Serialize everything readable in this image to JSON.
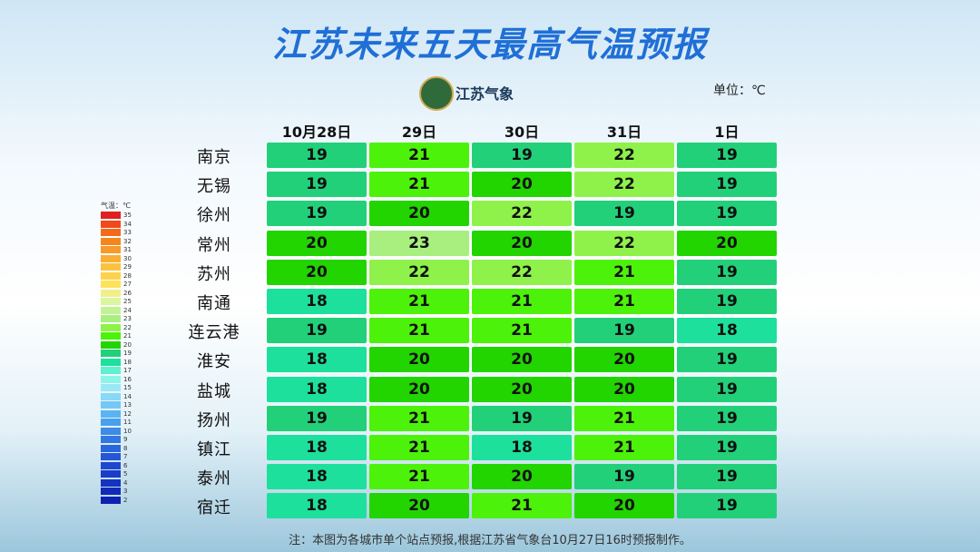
{
  "header": {
    "title": "江苏未来五天最高气温预报",
    "logo_text": "江苏气象",
    "unit": "单位：℃"
  },
  "table": {
    "columns": [
      "10月28日",
      "29日",
      "30日",
      "31日",
      "1日"
    ],
    "rows": [
      {
        "city": "南京",
        "values": [
          19,
          21,
          19,
          22,
          19
        ]
      },
      {
        "city": "无锡",
        "values": [
          19,
          21,
          20,
          22,
          19
        ]
      },
      {
        "city": "徐州",
        "values": [
          19,
          20,
          22,
          19,
          19
        ]
      },
      {
        "city": "常州",
        "values": [
          20,
          23,
          20,
          22,
          20
        ]
      },
      {
        "city": "苏州",
        "values": [
          20,
          22,
          22,
          21,
          19
        ]
      },
      {
        "city": "南通",
        "values": [
          18,
          21,
          21,
          21,
          19
        ]
      },
      {
        "city": "连云港",
        "values": [
          19,
          21,
          21,
          19,
          18
        ]
      },
      {
        "city": "淮安",
        "values": [
          18,
          20,
          20,
          20,
          19
        ]
      },
      {
        "city": "盐城",
        "values": [
          18,
          20,
          20,
          20,
          19
        ]
      },
      {
        "city": "扬州",
        "values": [
          19,
          21,
          19,
          21,
          19
        ]
      },
      {
        "city": "镇江",
        "values": [
          18,
          21,
          18,
          21,
          19
        ]
      },
      {
        "city": "泰州",
        "values": [
          18,
          21,
          20,
          19,
          19
        ]
      },
      {
        "city": "宿迁",
        "values": [
          18,
          20,
          21,
          20,
          19
        ]
      }
    ]
  },
  "legend": {
    "title": "气温：℃",
    "levels": [
      35,
      34,
      33,
      32,
      31,
      30,
      29,
      28,
      27,
      26,
      25,
      24,
      23,
      22,
      21,
      20,
      19,
      18,
      17,
      16,
      15,
      14,
      13,
      12,
      11,
      10,
      9,
      8,
      7,
      6,
      5,
      4,
      3,
      2
    ],
    "colors": [
      "#e02020",
      "#f04a1a",
      "#f26a1a",
      "#f5861e",
      "#f79a2a",
      "#f9ae34",
      "#fbc23e",
      "#fdd24c",
      "#fde25c",
      "#f0f08a",
      "#dcf5a0",
      "#c2f298",
      "#a8ef80",
      "#8ff24a",
      "#4cf20a",
      "#22d400",
      "#22d07a",
      "#1de09c",
      "#5ef0d0",
      "#8af5e8",
      "#9ae8f5",
      "#88d8f8",
      "#74c8f6",
      "#5ab4f2",
      "#4aa0ee",
      "#3c8ce8",
      "#3278e2",
      "#2a66dc",
      "#2456d6",
      "#1e48cf",
      "#1a3cc8",
      "#1632c0",
      "#122ab8",
      "#0e22b0"
    ]
  },
  "footnote": "注：本图为各城市单个站点预报,根据江苏省气象台10月27日16时预报制作。"
}
